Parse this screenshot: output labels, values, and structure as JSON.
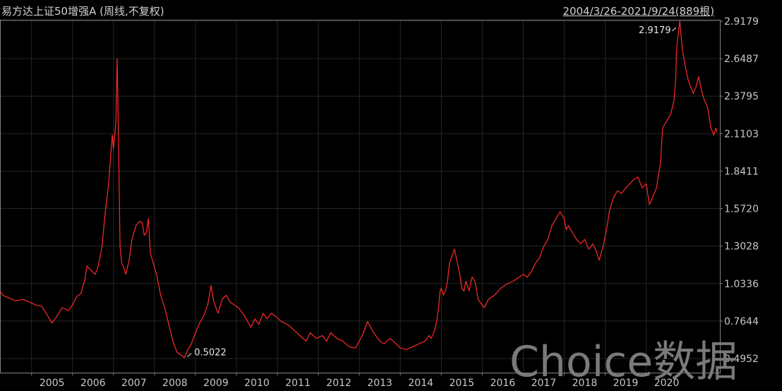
{
  "header": {
    "title": "易方达上证50增强A (周线,不复权)",
    "range": "2004/3/26-2021/9/24(889根)"
  },
  "watermark": "Choice数据",
  "chart_data": {
    "type": "line",
    "title": "易方达上证50增强A (周线,不复权)",
    "xlabel": "",
    "ylabel": "",
    "grid": true,
    "line_color": "#ff2a2a",
    "axis_color": "#808080",
    "grid_color": "#262626",
    "x_range": [
      2004.23,
      2021.73
    ],
    "ylim": [
      0.4952,
      2.9179
    ],
    "y_ticks": [
      "2.9179",
      "2.6487",
      "2.3795",
      "2.1103",
      "1.8411",
      "1.5720",
      "1.3028",
      "1.0336",
      "0.7644",
      "0.4952"
    ],
    "x_ticks": [
      "2005",
      "2006",
      "2007",
      "2008",
      "2009",
      "2010",
      "2011",
      "2012",
      "2013",
      "2014",
      "2015",
      "2016",
      "2017",
      "2018",
      "2019",
      "2020"
    ],
    "annotations": [
      {
        "label": "2.9179",
        "x": 2020.74,
        "y": 2.9179
      },
      {
        "label": "0.5022",
        "x": 2008.73,
        "y": 0.5022
      }
    ],
    "series": [
      {
        "x": [
          2004.23,
          2004.3,
          2004.45,
          2004.6,
          2004.8,
          2004.95,
          2005.1,
          2005.25,
          2005.4,
          2005.5,
          2005.6,
          2005.75,
          2005.9,
          2006.0,
          2006.1,
          2006.2,
          2006.3,
          2006.35,
          2006.45,
          2006.55,
          2006.62,
          2006.72,
          2006.8,
          2006.88,
          2006.93,
          2006.97,
          2007.0,
          2007.03,
          2007.06,
          2007.09,
          2007.12,
          2007.16,
          2007.2,
          2007.25,
          2007.3,
          2007.38,
          2007.45,
          2007.55,
          2007.63,
          2007.7,
          2007.75,
          2007.8,
          2007.85,
          2007.9,
          2007.95,
          2008.05,
          2008.15,
          2008.25,
          2008.35,
          2008.45,
          2008.55,
          2008.65,
          2008.73,
          2008.8,
          2008.9,
          2009.0,
          2009.1,
          2009.2,
          2009.3,
          2009.38,
          2009.45,
          2009.55,
          2009.65,
          2009.75,
          2009.85,
          2009.95,
          2010.05,
          2010.2,
          2010.35,
          2010.45,
          2010.55,
          2010.65,
          2010.75,
          2010.85,
          2010.95,
          2011.1,
          2011.25,
          2011.4,
          2011.55,
          2011.7,
          2011.8,
          2011.95,
          2012.1,
          2012.2,
          2012.3,
          2012.45,
          2012.6,
          2012.75,
          2012.9,
          2013.0,
          2013.1,
          2013.2,
          2013.35,
          2013.5,
          2013.6,
          2013.75,
          2013.9,
          2014.0,
          2014.15,
          2014.3,
          2014.45,
          2014.6,
          2014.7,
          2014.75,
          2014.82,
          2014.88,
          2014.93,
          2014.97,
          2015.0,
          2015.05,
          2015.1,
          2015.15,
          2015.2,
          2015.25,
          2015.32,
          2015.38,
          2015.45,
          2015.5,
          2015.55,
          2015.6,
          2015.68,
          2015.75,
          2015.82,
          2015.9,
          2016.0,
          2016.05,
          2016.15,
          2016.3,
          2016.45,
          2016.6,
          2016.75,
          2016.9,
          2017.0,
          2017.1,
          2017.2,
          2017.3,
          2017.4,
          2017.5,
          2017.6,
          2017.7,
          2017.8,
          2017.9,
          2018.0,
          2018.05,
          2018.1,
          2018.2,
          2018.3,
          2018.4,
          2018.5,
          2018.6,
          2018.7,
          2018.8,
          2018.85,
          2018.95,
          2019.05,
          2019.1,
          2019.2,
          2019.3,
          2019.4,
          2019.5,
          2019.6,
          2019.7,
          2019.8,
          2019.9,
          2020.0,
          2020.08,
          2020.15,
          2020.25,
          2020.35,
          2020.4,
          2020.5,
          2020.6,
          2020.68,
          2020.72,
          2020.74,
          2020.78,
          2020.82,
          2020.88,
          2020.95,
          2021.02,
          2021.08,
          2021.15,
          2021.22,
          2021.28,
          2021.35,
          2021.42,
          2021.5,
          2021.58,
          2021.65,
          2021.7,
          2021.73
        ],
        "values": [
          0.98,
          0.95,
          0.93,
          0.91,
          0.92,
          0.9,
          0.88,
          0.87,
          0.8,
          0.75,
          0.79,
          0.86,
          0.84,
          0.88,
          0.94,
          0.96,
          1.06,
          1.16,
          1.13,
          1.1,
          1.15,
          1.3,
          1.55,
          1.75,
          1.95,
          2.1,
          2.0,
          2.1,
          2.2,
          2.65,
          2.1,
          1.3,
          1.18,
          1.15,
          1.1,
          1.2,
          1.35,
          1.45,
          1.48,
          1.47,
          1.38,
          1.4,
          1.5,
          1.25,
          1.2,
          1.1,
          0.95,
          0.86,
          0.74,
          0.62,
          0.54,
          0.52,
          0.5022,
          0.55,
          0.6,
          0.68,
          0.75,
          0.8,
          0.88,
          1.02,
          0.9,
          0.82,
          0.92,
          0.95,
          0.9,
          0.88,
          0.86,
          0.8,
          0.72,
          0.78,
          0.74,
          0.82,
          0.78,
          0.82,
          0.8,
          0.76,
          0.74,
          0.7,
          0.66,
          0.62,
          0.68,
          0.64,
          0.66,
          0.62,
          0.68,
          0.64,
          0.62,
          0.58,
          0.57,
          0.62,
          0.68,
          0.76,
          0.68,
          0.62,
          0.6,
          0.64,
          0.6,
          0.57,
          0.56,
          0.58,
          0.6,
          0.62,
          0.66,
          0.64,
          0.68,
          0.75,
          0.85,
          0.98,
          1.0,
          0.95,
          0.98,
          1.05,
          1.18,
          1.22,
          1.28,
          1.2,
          1.1,
          1.0,
          0.98,
          1.05,
          0.98,
          1.08,
          1.05,
          0.92,
          0.88,
          0.86,
          0.92,
          0.95,
          1.0,
          1.03,
          1.05,
          1.08,
          1.1,
          1.08,
          1.12,
          1.18,
          1.22,
          1.3,
          1.35,
          1.45,
          1.5,
          1.55,
          1.5,
          1.42,
          1.45,
          1.4,
          1.35,
          1.32,
          1.35,
          1.28,
          1.32,
          1.25,
          1.2,
          1.3,
          1.45,
          1.55,
          1.65,
          1.7,
          1.68,
          1.72,
          1.75,
          1.78,
          1.8,
          1.72,
          1.75,
          1.6,
          1.65,
          1.72,
          1.9,
          2.15,
          2.2,
          2.25,
          2.35,
          2.5,
          2.7,
          2.82,
          2.9179,
          2.72,
          2.6,
          2.5,
          2.45,
          2.4,
          2.45,
          2.52,
          2.42,
          2.35,
          2.3,
          2.15,
          2.1,
          2.15,
          2.12
        ]
      }
    ]
  }
}
